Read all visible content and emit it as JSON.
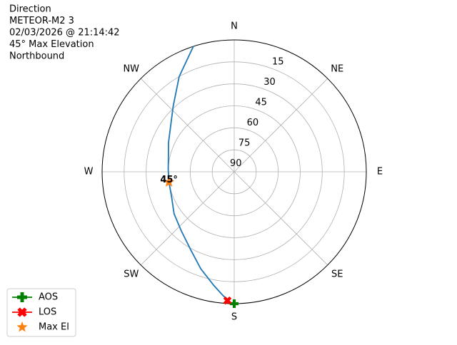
{
  "chart_data": {
    "type": "polar",
    "title_lines": [
      "Direction",
      "METEOR-M2 3",
      "02/03/2026 @ 21:14:42",
      "45° Max Elevation",
      "Northbound"
    ],
    "rlim": [
      90,
      0
    ],
    "rticks": [
      90,
      75,
      60,
      45,
      30,
      15
    ],
    "thetaticks": [
      {
        "value": 0,
        "label": "N"
      },
      {
        "value": 45,
        "label": "NE"
      },
      {
        "value": 90,
        "label": "E"
      },
      {
        "value": 135,
        "label": "SE"
      },
      {
        "value": 180,
        "label": "S"
      },
      {
        "value": 225,
        "label": "SW"
      },
      {
        "value": 270,
        "label": "W"
      },
      {
        "value": 315,
        "label": "NW"
      }
    ],
    "grid": true,
    "direction": "clockwise",
    "zero_location": "N",
    "track": {
      "color": "#1f77b4",
      "x": [
        342,
        330,
        317,
        305,
        294,
        283,
        272,
        261,
        248,
        235,
        222,
        209,
        199,
        190,
        185,
        181
      ],
      "values": [
        0,
        15,
        29,
        37,
        41,
        44,
        45,
        45,
        44,
        40,
        36,
        29,
        20,
        11,
        5,
        0
      ]
    },
    "series": [
      {
        "name": "AOS",
        "color": "#008000",
        "marker": "plus",
        "line": true,
        "x": [
          180
        ],
        "values": [
          0
        ]
      },
      {
        "name": "LOS",
        "color": "#ff0000",
        "marker": "x",
        "line": true,
        "x": [
          183
        ],
        "values": [
          2
        ]
      },
      {
        "name": "Max El",
        "color": "#ff7f0e",
        "marker": "star",
        "line": false,
        "x": [
          261
        ],
        "values": [
          45
        ],
        "value_labels": [
          "45°"
        ]
      }
    ],
    "legend": "lower left"
  }
}
